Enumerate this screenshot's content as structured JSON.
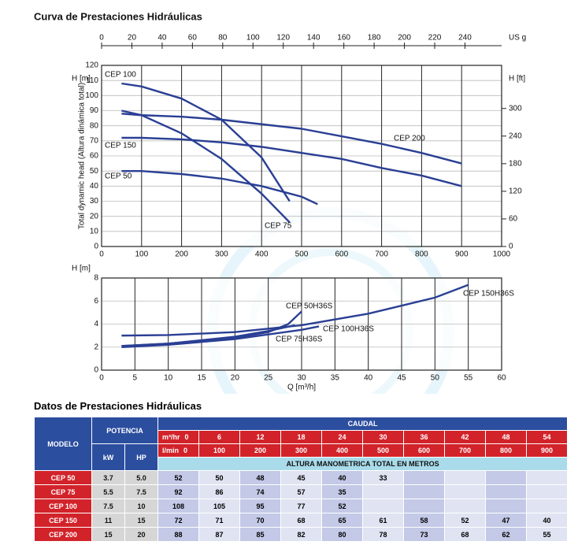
{
  "chart_data": [
    {
      "type": "line",
      "title": "Curva de Prestaciones Hidráulicas",
      "ylabel": "H [m]",
      "y_title": "Total dynamic head (Altura dinámica total)",
      "y2label": "H [ft]",
      "x2label": "US g",
      "xlim": [
        0,
        1000
      ],
      "xticks": [
        0,
        100,
        200,
        300,
        400,
        500,
        600,
        700,
        800,
        900,
        1000
      ],
      "ylim": [
        0,
        120
      ],
      "yticks": [
        0,
        10,
        20,
        30,
        40,
        50,
        60,
        70,
        80,
        90,
        100,
        110,
        120
      ],
      "y2lim": [
        0,
        393.7
      ],
      "y2ticks": [
        0,
        60,
        120,
        180,
        240,
        300
      ],
      "x2lim": [
        0,
        264.2
      ],
      "x2ticks": [
        0,
        20,
        40,
        60,
        80,
        100,
        120,
        140,
        160,
        180,
        200,
        220,
        240
      ],
      "grid": true,
      "series": [
        {
          "name": "CEP 100",
          "color": "#2a3f94",
          "x": [
            50,
            100,
            200,
            300,
            400,
            470
          ],
          "values": [
            108,
            106,
            98,
            84,
            59,
            30
          ]
        },
        {
          "name": "CEP 150",
          "color": "#2a3f94",
          "x": [
            50,
            100,
            200,
            300,
            400,
            500,
            600,
            700,
            800,
            900
          ],
          "values": [
            72,
            72,
            71,
            69,
            66,
            62,
            58,
            52,
            47,
            40
          ]
        },
        {
          "name": "CEP 50",
          "color": "#2a3f94",
          "x": [
            50,
            100,
            200,
            300,
            400,
            500,
            540
          ],
          "values": [
            50,
            50,
            48,
            45,
            40,
            33,
            28
          ]
        },
        {
          "name": "CEP 75",
          "color": "#2a3f94",
          "x": [
            50,
            100,
            200,
            300,
            400,
            470
          ],
          "values": [
            90,
            87,
            75,
            58,
            35,
            16
          ]
        },
        {
          "name": "CEP 200",
          "color": "#2a3f94",
          "x": [
            50,
            100,
            200,
            300,
            400,
            500,
            600,
            700,
            800,
            900
          ],
          "values": [
            88,
            87,
            86,
            84,
            81,
            78,
            73,
            68,
            62,
            55
          ]
        }
      ]
    },
    {
      "type": "line",
      "ylabel": "H [m]",
      "xlabel": "Q [m³/h]",
      "xlim": [
        0,
        60
      ],
      "xticks": [
        0,
        5,
        10,
        15,
        20,
        25,
        30,
        35,
        40,
        45,
        50,
        55,
        60
      ],
      "ylim": [
        0,
        8
      ],
      "yticks": [
        0,
        2,
        4,
        6,
        8
      ],
      "grid": true,
      "series": [
        {
          "name": "CEP 50H36S",
          "color": "#2a3f94",
          "x": [
            3,
            10,
            20,
            25,
            28,
            30
          ],
          "values": [
            2.1,
            2.3,
            2.8,
            3.3,
            4.0,
            5.1
          ]
        },
        {
          "name": "CEP 100H36S",
          "color": "#2a3f94",
          "x": [
            3,
            10,
            20,
            30,
            32.6
          ],
          "values": [
            2.0,
            2.2,
            2.7,
            3.5,
            3.8
          ]
        },
        {
          "name": "CEP 75H36S",
          "color": "#2a3f94",
          "x": [
            3,
            10,
            20,
            25,
            29
          ],
          "values": [
            2.1,
            2.3,
            2.9,
            3.4,
            3.9
          ]
        },
        {
          "name": "CEP 150H36S",
          "color": "#2a3f94",
          "x": [
            3,
            10,
            20,
            30,
            40,
            50,
            55
          ],
          "values": [
            3.0,
            3.05,
            3.3,
            3.9,
            4.9,
            6.3,
            7.4
          ]
        }
      ]
    }
  ],
  "table": {
    "title": "Datos de Prestaciones Hidráulicas",
    "modelo": "MODELO",
    "potencia": "POTENCIA",
    "kw": "kW",
    "hp": "HP",
    "caudal": "CAUDAL",
    "m3hr_label": "m³/hr",
    "m3hr": [
      0,
      6,
      12,
      18,
      24,
      30,
      36,
      42,
      48,
      54
    ],
    "lmin_label": "l/min",
    "lmin": [
      0,
      100,
      200,
      300,
      400,
      500,
      600,
      700,
      800,
      900
    ],
    "altura": "ALTURA MANOMETRICA TOTAL EN METROS",
    "rows": [
      {
        "model": "CEP 50",
        "kw": 3.7,
        "hp": "5.0",
        "values": [
          52,
          50,
          48,
          45,
          40,
          33
        ]
      },
      {
        "model": "CEP 75",
        "kw": 5.5,
        "hp": 7.5,
        "values": [
          92,
          86,
          74,
          57,
          35
        ]
      },
      {
        "model": "CEP 100",
        "kw": 7.5,
        "hp": 10,
        "values": [
          108,
          105,
          95,
          77,
          52
        ]
      },
      {
        "model": "CEP 150",
        "kw": 11,
        "hp": 15,
        "values": [
          72,
          71,
          70,
          68,
          65,
          61,
          58,
          52,
          47,
          40
        ]
      },
      {
        "model": "CEP 200",
        "kw": 15,
        "hp": 20,
        "values": [
          88,
          87,
          85,
          82,
          80,
          78,
          73,
          68,
          62,
          55
        ]
      }
    ]
  }
}
